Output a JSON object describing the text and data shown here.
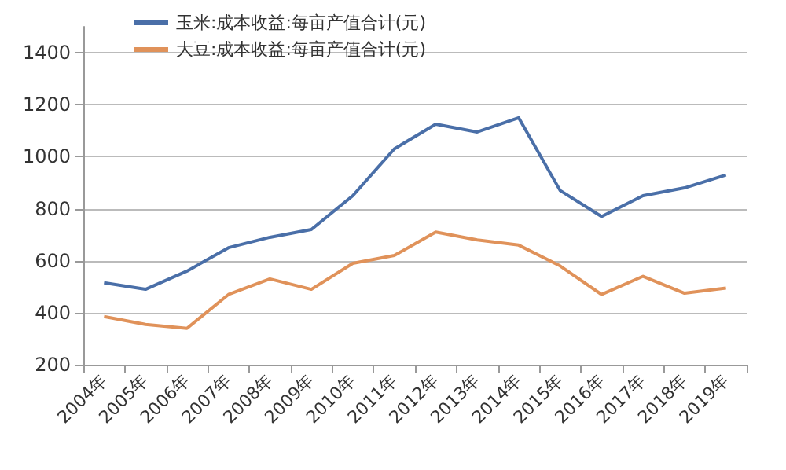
{
  "chart_data": {
    "type": "line",
    "categories": [
      "2004年",
      "2005年",
      "2006年",
      "2007年",
      "2008年",
      "2009年",
      "2010年",
      "2011年",
      "2012年",
      "2013年",
      "2014年",
      "2015年",
      "2016年",
      "2017年",
      "2018年",
      "2019年"
    ],
    "series": [
      {
        "name": "玉米:成本收益:每亩产值合计(元)",
        "color": "#4a6fa8",
        "values": [
          515,
          490,
          560,
          650,
          690,
          720,
          850,
          1030,
          1125,
          1095,
          1150,
          870,
          770,
          850,
          880,
          930
        ]
      },
      {
        "name": "大豆:成本收益:每亩产值合计(元)",
        "color": "#e0925a",
        "values": [
          385,
          355,
          340,
          470,
          530,
          490,
          590,
          620,
          710,
          680,
          660,
          580,
          470,
          540,
          475,
          495
        ]
      }
    ],
    "ylim": [
      200,
      1500
    ],
    "yticks": [
      200,
      400,
      600,
      800,
      1000,
      1200,
      1400
    ],
    "grid": "y",
    "legend": "top left",
    "marker": "none",
    "line_style": "solid"
  }
}
